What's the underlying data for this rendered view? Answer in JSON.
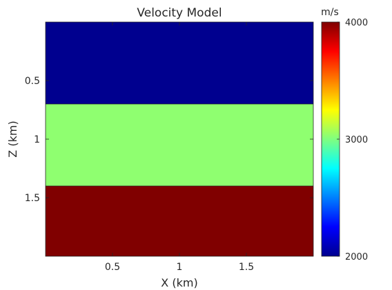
{
  "chart_data": {
    "type": "heatmap",
    "title": "Velocity Model",
    "xlabel": "X (km)",
    "ylabel": "Z (km)",
    "xlim": [
      0,
      2
    ],
    "ylim": [
      0,
      2
    ],
    "y_reversed": true,
    "xticks": [
      0.5,
      1,
      1.5
    ],
    "xtick_labels": [
      "0.5",
      "1",
      "1.5"
    ],
    "yticks": [
      0.5,
      1,
      1.5
    ],
    "ytick_labels": [
      "0.5",
      "1",
      "1.5"
    ],
    "layers": [
      {
        "z_top": 0,
        "z_bottom": 0.7,
        "velocity": 2000,
        "color": "#00008f"
      },
      {
        "z_top": 0.7,
        "z_bottom": 1.4,
        "velocity": 3000,
        "color": "#8fff70"
      },
      {
        "z_top": 1.4,
        "z_bottom": 2,
        "velocity": 4000,
        "color": "#800000"
      }
    ],
    "colorbar": {
      "unit": "m/s",
      "min": 2000,
      "max": 4000,
      "ticks": [
        2000,
        3000,
        4000
      ],
      "tick_labels": [
        "2000",
        "3000",
        "4000"
      ],
      "colormap": "jet"
    },
    "grid": false
  }
}
